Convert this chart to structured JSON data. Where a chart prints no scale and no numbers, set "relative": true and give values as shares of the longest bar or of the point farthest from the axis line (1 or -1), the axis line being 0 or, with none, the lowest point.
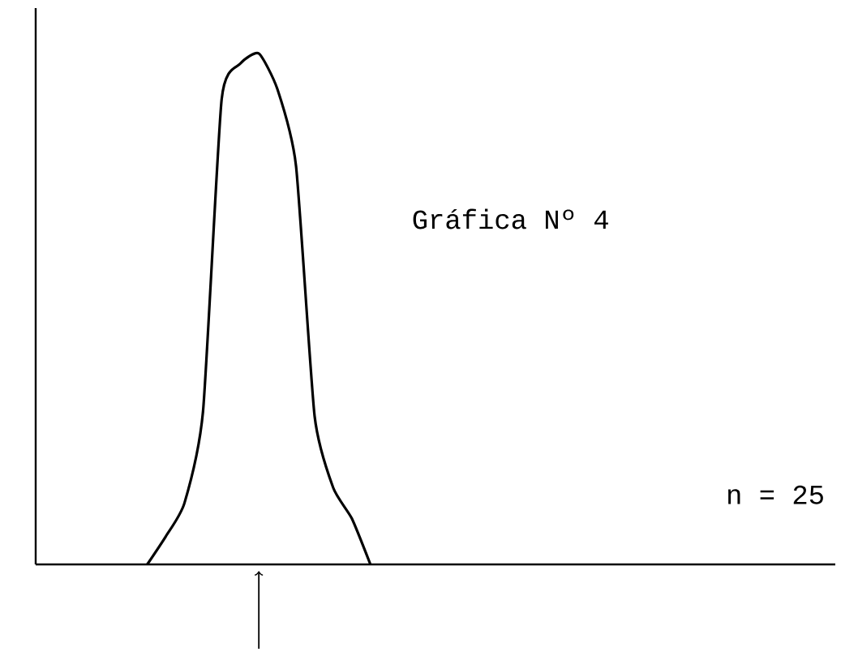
{
  "chart_data": {
    "type": "line",
    "relative": true,
    "title": "Gráfica Nº 4",
    "annotations": [
      "n = 25"
    ],
    "categories": [
      null,
      null,
      null,
      null,
      null,
      null,
      null,
      null,
      null,
      null,
      null,
      null,
      null,
      null,
      null,
      null,
      null,
      null,
      null,
      null,
      null,
      null,
      null,
      null,
      null,
      null,
      null,
      null,
      null,
      null,
      null,
      null,
      null,
      null,
      null,
      null,
      null,
      null,
      null,
      null,
      null,
      null,
      null,
      null
    ],
    "series": [
      {
        "color": "#000000",
        "values": [
          null,
          null,
          null,
          null,
          null,
          null,
          0,
          0.055,
          0.12,
          0.3,
          0.91,
          0.98,
          1.0,
          0.93,
          0.78,
          0.29,
          0.15,
          0.09,
          0,
          null,
          null,
          null,
          null,
          null,
          null,
          null,
          null,
          null,
          null,
          null,
          null,
          null,
          null,
          null,
          null,
          null,
          null,
          null,
          null,
          null,
          null,
          null,
          null,
          null
        ]
      }
    ]
  }
}
